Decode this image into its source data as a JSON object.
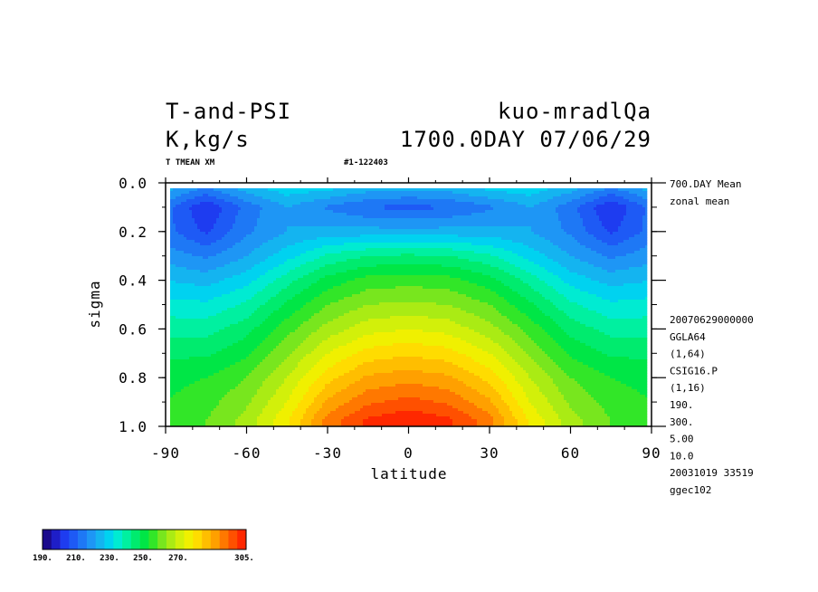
{
  "header": {
    "title_left": "T-and-PSI",
    "title_right": "kuo-mradlQa",
    "units": "K,kg/s",
    "date": "1700.0DAY 07/06/29",
    "var_line": "T TMEAN XM",
    "run_id": "#1-122403"
  },
  "side_info": {
    "top": [
      "700.DAY Mean",
      "zonal mean"
    ],
    "bottom": [
      "20070629000000",
      "GGLA64",
      "(1,64)",
      "CSIG16.P",
      "(1,16)",
      "190.",
      "300.",
      "5.00",
      "10.0",
      "20031019  33519",
      "ggec102"
    ]
  },
  "colorbar": {
    "labels": [
      "190.",
      "210.",
      "230.",
      "250.",
      "270.",
      "305."
    ],
    "colors": [
      "#1a0a8c",
      "#1e1ec8",
      "#1e3cf0",
      "#1e5af5",
      "#1e78f5",
      "#1e96f5",
      "#14b4f0",
      "#00d2f0",
      "#00ebd2",
      "#00f0a0",
      "#00eb6e",
      "#00e646",
      "#32e628",
      "#78e61e",
      "#aaeb14",
      "#d2f00a",
      "#f0f000",
      "#ffdc00",
      "#ffbe00",
      "#ffa000",
      "#ff7800",
      "#ff5000",
      "#ff2800"
    ]
  },
  "chart_data": {
    "type": "heatmap",
    "xlabel": "latitude",
    "ylabel": "sigma",
    "xlim": [
      -90,
      90
    ],
    "ylim": [
      1.0,
      0.0
    ],
    "x_ticks": [
      "-90",
      "-60",
      "-30",
      "0",
      "30",
      "60",
      "90"
    ],
    "y_ticks": [
      "0.0",
      "0.2",
      "0.4",
      "0.6",
      "0.8",
      "1.0"
    ],
    "contour_levels": {
      "min": 190,
      "max": 305,
      "interval": 5
    },
    "sigma": [
      0.025,
      0.1,
      0.2,
      0.3,
      0.4,
      0.5,
      0.6,
      0.7,
      0.8,
      0.9,
      0.975
    ],
    "latitude": [
      -90,
      -75,
      -60,
      -45,
      -30,
      -15,
      0,
      15,
      30,
      45,
      60,
      75,
      90
    ],
    "values": [
      [
        222,
        214,
        222,
        228,
        226,
        222,
        221,
        222,
        226,
        228,
        222,
        214,
        222
      ],
      [
        212,
        200,
        212,
        220,
        214,
        210,
        208,
        210,
        214,
        220,
        212,
        200,
        212
      ],
      [
        212,
        204,
        214,
        220,
        222,
        222,
        222,
        222,
        222,
        220,
        214,
        204,
        212
      ],
      [
        218,
        214,
        220,
        228,
        236,
        240,
        241,
        240,
        236,
        228,
        220,
        214,
        218
      ],
      [
        225,
        223,
        228,
        238,
        247,
        252,
        253,
        252,
        247,
        238,
        228,
        223,
        225
      ],
      [
        232,
        231,
        236,
        246,
        255,
        260,
        261,
        260,
        255,
        246,
        236,
        231,
        232
      ],
      [
        238,
        238,
        243,
        253,
        262,
        268,
        270,
        268,
        262,
        253,
        243,
        238,
        238
      ],
      [
        244,
        244,
        249,
        259,
        270,
        277,
        279,
        277,
        270,
        259,
        249,
        244,
        244
      ],
      [
        248,
        250,
        255,
        265,
        278,
        286,
        288,
        286,
        278,
        265,
        255,
        250,
        248
      ],
      [
        250,
        253,
        259,
        270,
        286,
        294,
        297,
        294,
        286,
        270,
        259,
        253,
        250
      ],
      [
        252,
        255,
        262,
        274,
        292,
        301,
        304,
        301,
        292,
        274,
        262,
        255,
        252
      ]
    ]
  }
}
